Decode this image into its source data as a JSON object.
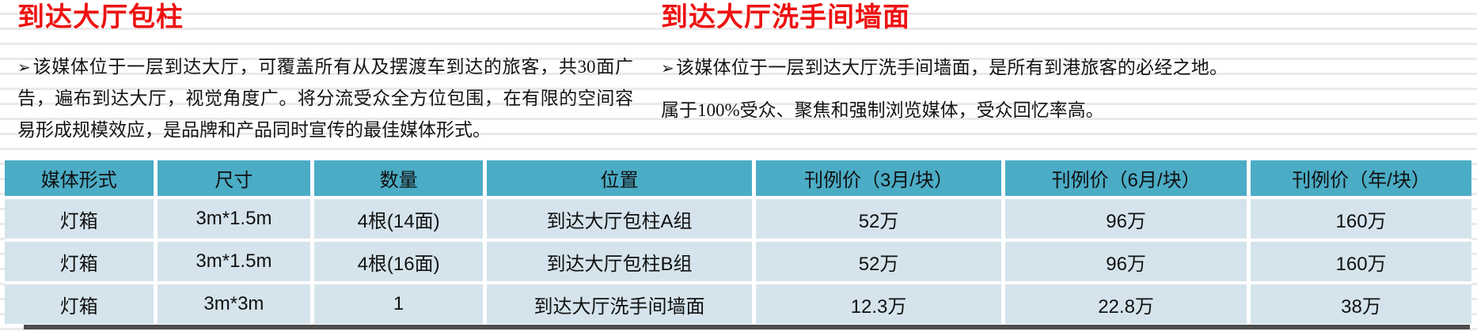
{
  "colors": {
    "heading_red": "#ee1111",
    "table_header_bg": "#4bacc6",
    "table_row_bg": "#d5e4ec",
    "bottom_bar": "#4d4d4d"
  },
  "sections": [
    {
      "title": "到达大厅包柱",
      "bullet": "➢",
      "body": "该媒体位于一层到达大厅，可覆盖所有从及摆渡车到达的旅客，共30面广告，遍布到达大厅，视觉角度广。将分流受众全方位包围，在有限的空间容易形成规模效应，是品牌和产品同时宣传的最佳媒体形式。"
    },
    {
      "title": "到达大厅洗手间墙面",
      "bullet": "➢",
      "body": "该媒体位于一层到达大厅洗手间墙面，是所有到港旅客的必经之地。属于100%受众、聚焦和强制浏览媒体，受众回忆率高。"
    }
  ],
  "table": {
    "headers": [
      "媒体形式",
      "尺寸",
      "数量",
      "位置",
      "刊例价（3月/块）",
      "刊例价（6月/块）",
      "刊例价（年/块）"
    ],
    "rows": [
      [
        "灯箱",
        "3m*1.5m",
        "4根(14面)",
        "到达大厅包柱A组",
        "52万",
        "96万",
        "160万"
      ],
      [
        "灯箱",
        "3m*1.5m",
        "4根(16面)",
        "到达大厅包柱B组",
        "52万",
        "96万",
        "160万"
      ],
      [
        "灯箱",
        "3m*3m",
        "1",
        "到达大厅洗手间墙面",
        "12.3万",
        "22.8万",
        "38万"
      ]
    ]
  }
}
